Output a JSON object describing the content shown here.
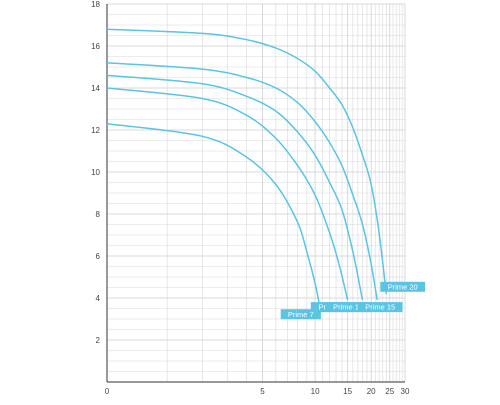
{
  "chart_data": {
    "type": "line",
    "title": "",
    "xlabel": "",
    "ylabel": "",
    "x_scale": "log1p",
    "xlim": [
      0,
      30
    ],
    "ylim": [
      0,
      18
    ],
    "x_ticks": [
      0,
      5,
      10,
      15,
      20,
      25,
      30
    ],
    "y_ticks": [
      2,
      4,
      6,
      8,
      10,
      12,
      14,
      16,
      18
    ],
    "grid": true,
    "line_color": "#5bc4e2",
    "label_bg_color": "#5bc4e2",
    "label_text_color": "#ffffff",
    "axis_color": "#333333",
    "grid_color": "#d8d8d8",
    "series": [
      {
        "name": "Prime 7",
        "x": [
          0,
          2,
          4,
          6,
          8,
          9,
          10,
          10.5
        ],
        "y": [
          12.3,
          11.7,
          10.7,
          9.4,
          7.6,
          6.2,
          4.7,
          3.8
        ]
      },
      {
        "name": "Prime 11",
        "x": [
          0,
          2,
          4,
          6,
          8,
          10,
          12,
          13.5,
          15
        ],
        "y": [
          14.0,
          13.5,
          12.7,
          11.6,
          10.3,
          8.9,
          7.1,
          5.6,
          3.9
        ]
      },
      {
        "name": "Prime 13",
        "x": [
          0,
          2,
          4,
          6,
          8,
          10,
          12,
          14,
          16,
          18
        ],
        "y": [
          14.6,
          14.2,
          13.6,
          12.9,
          11.9,
          10.8,
          9.5,
          8.2,
          6.2,
          3.9
        ]
      },
      {
        "name": "Prime 15",
        "x": [
          0,
          2,
          4,
          6,
          8,
          10,
          12,
          14,
          16,
          18,
          20,
          21.5
        ],
        "y": [
          15.2,
          14.9,
          14.5,
          14.0,
          13.3,
          12.4,
          11.4,
          10.3,
          8.9,
          7.5,
          5.6,
          3.9
        ]
      },
      {
        "name": "Prime 20",
        "x": [
          0,
          2,
          4,
          6,
          8,
          10,
          12,
          14,
          16,
          18,
          20,
          22,
          24
        ],
        "y": [
          16.8,
          16.6,
          16.3,
          15.9,
          15.4,
          14.8,
          14.0,
          13.2,
          12.1,
          10.8,
          9.4,
          7.1,
          4.2
        ]
      }
    ]
  }
}
